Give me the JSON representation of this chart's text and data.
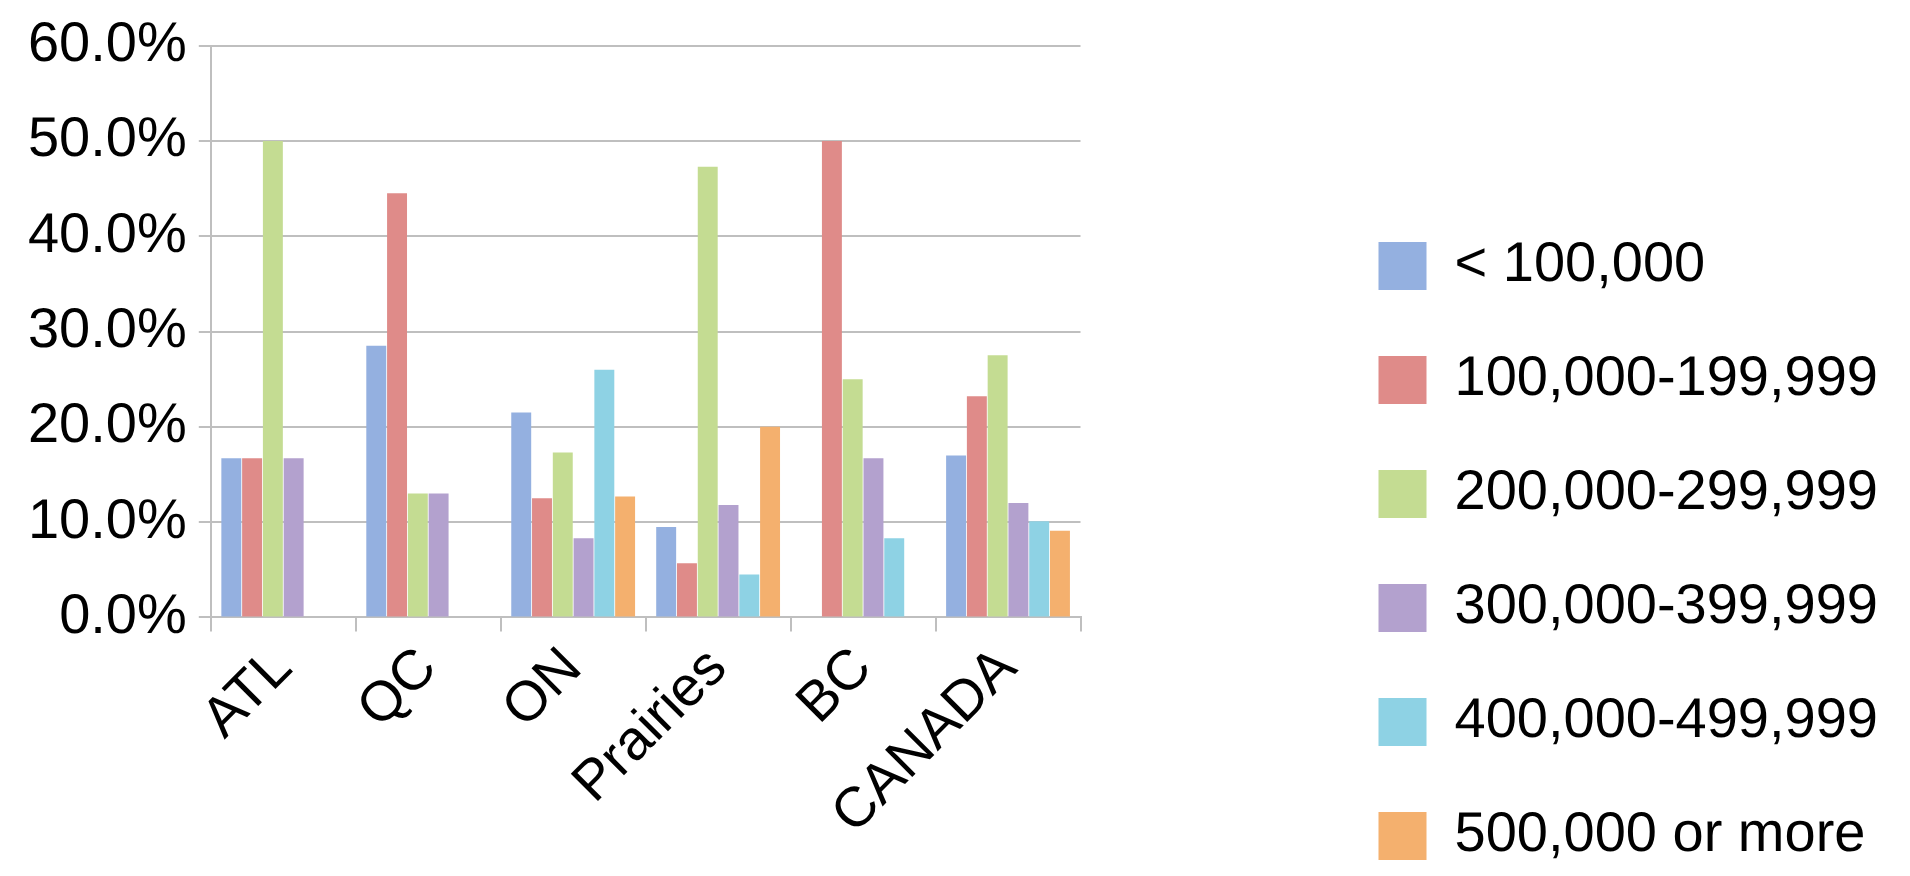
{
  "chart_data": {
    "type": "bar",
    "categories": [
      "ATL",
      "QC",
      "ON",
      "Prairies",
      "BC",
      "CANADA"
    ],
    "series": [
      {
        "name": "< 100,000",
        "color": "#94b0e0",
        "values": [
          16.7,
          28.5,
          21.5,
          9.5,
          0,
          17.0
        ]
      },
      {
        "name": "100,000-199,999",
        "color": "#df8b89",
        "values": [
          16.7,
          44.5,
          12.5,
          5.7,
          50.0,
          23.2
        ]
      },
      {
        "name": "200,000-299,999",
        "color": "#c4dc92",
        "values": [
          50.0,
          13.0,
          17.3,
          47.3,
          25.0,
          27.5
        ]
      },
      {
        "name": "300,000-399,999",
        "color": "#b3a1ce",
        "values": [
          16.7,
          13.0,
          8.3,
          11.8,
          16.7,
          12.0
        ]
      },
      {
        "name": "400,000-499,999",
        "color": "#8ed2e4",
        "values": [
          0,
          0,
          26.0,
          4.5,
          8.3,
          10.1
        ]
      },
      {
        "name": "500,000 or more",
        "color": "#f4b06e",
        "values": [
          0,
          0,
          12.7,
          20.0,
          0,
          9.1
        ]
      }
    ],
    "ylim": [
      0,
      60
    ],
    "yticks": [
      {
        "value": 0,
        "label": "0.0%"
      },
      {
        "value": 10,
        "label": "10.0%"
      },
      {
        "value": 20,
        "label": "20.0%"
      },
      {
        "value": 30,
        "label": "30.0%"
      },
      {
        "value": 40,
        "label": "40.0%"
      },
      {
        "value": 50,
        "label": "50.0%"
      },
      {
        "value": 60,
        "label": "60.0%"
      }
    ],
    "grid": "y",
    "legend": "right"
  }
}
